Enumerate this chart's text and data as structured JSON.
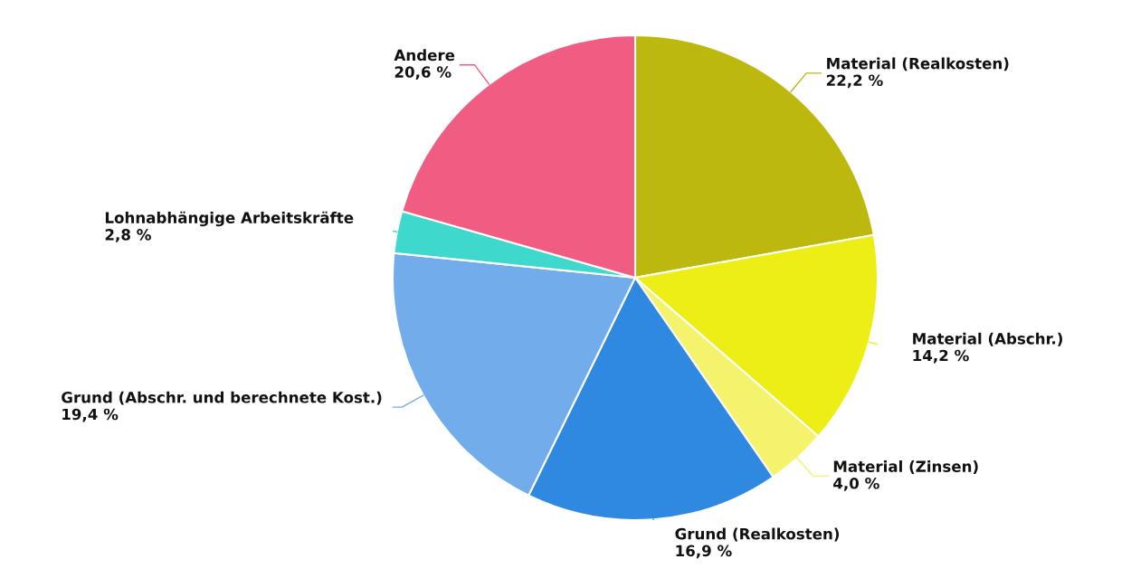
{
  "chart_data": {
    "type": "pie",
    "categories": [
      "Material (Realkosten)",
      "Material (Abschr.)",
      "Material (Zinsen)",
      "Grund (Realkosten)",
      "Grund (Abschr. und berechnete Kost.)",
      "Lohnabhängige Arbeitskräfte",
      "Andere"
    ],
    "values": [
      22.2,
      14.2,
      4.0,
      16.9,
      19.4,
      2.8,
      20.6
    ],
    "value_labels": [
      "22,2 %",
      "14,2 %",
      "4,0 %",
      "16,9 %",
      "19,4 %",
      "2,8 %",
      "20,6 %"
    ],
    "colors": [
      "#bdb80e",
      "#eeee17",
      "#f5f36b",
      "#2f89e1",
      "#72acea",
      "#3fd8cc",
      "#f05c82"
    ]
  }
}
